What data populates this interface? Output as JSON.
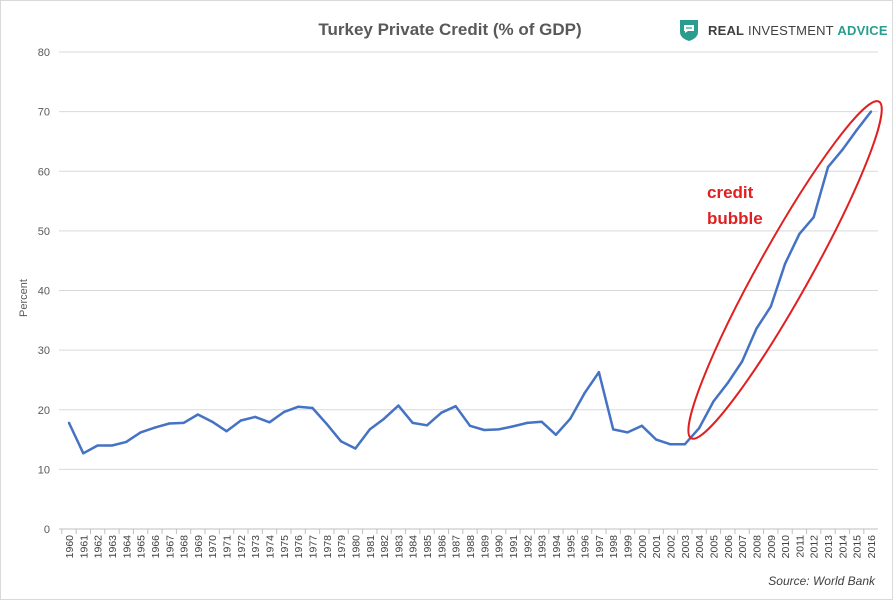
{
  "colors": {
    "line": "#4472c4",
    "grid": "#d9d9d9",
    "annotation": "#e02020",
    "logo_shield": "#2a9d8f"
  },
  "logo": {
    "icon": "shield-speech-icon",
    "word_real": "REAL",
    "word_investment": "INVESTMENT",
    "word_advice": "ADVICE"
  },
  "source": "Source: World Bank",
  "annotation": {
    "line1": "credit",
    "line2": "bubble"
  },
  "chart_data": {
    "type": "line",
    "title": "Turkey Private Credit (% of GDP)",
    "xlabel": "",
    "ylabel": "Percent",
    "ylim": [
      0,
      80
    ],
    "yticks": [
      0,
      10,
      20,
      30,
      40,
      50,
      60,
      70,
      80
    ],
    "grid": true,
    "legend": "none",
    "categories": [
      "1960",
      "1961",
      "1962",
      "1963",
      "1964",
      "1965",
      "1966",
      "1967",
      "1968",
      "1969",
      "1970",
      "1971",
      "1972",
      "1973",
      "1974",
      "1975",
      "1976",
      "1977",
      "1978",
      "1979",
      "1980",
      "1981",
      "1982",
      "1983",
      "1984",
      "1985",
      "1986",
      "1987",
      "1988",
      "1989",
      "1990",
      "1991",
      "1992",
      "1993",
      "1994",
      "1995",
      "1996",
      "1997",
      "1998",
      "1999",
      "2000",
      "2001",
      "2002",
      "2003",
      "2004",
      "2005",
      "2006",
      "2007",
      "2008",
      "2009",
      "2010",
      "2011",
      "2012",
      "2013",
      "2014",
      "2015",
      "2016"
    ],
    "series": [
      {
        "values": [
          17.8,
          12.7,
          14.0,
          14.0,
          14.6,
          16.2,
          17.0,
          17.7,
          17.8,
          19.2,
          18.0,
          16.4,
          18.2,
          18.8,
          17.9,
          19.6,
          20.5,
          20.3,
          17.6,
          14.7,
          13.5,
          16.7,
          18.5,
          20.7,
          17.8,
          17.4,
          19.5,
          20.6,
          17.3,
          16.6,
          16.7,
          17.2,
          17.8,
          18.0,
          15.8,
          18.5,
          22.8,
          26.3,
          16.7,
          16.2,
          17.3,
          15.0,
          14.2,
          14.2,
          16.9,
          21.4,
          24.5,
          28.1,
          33.6,
          37.3,
          44.5,
          49.5,
          52.3,
          60.7,
          63.6,
          66.9,
          70.0
        ]
      }
    ],
    "highlight_ellipse": {
      "x_from": "2004",
      "x_to": "2016",
      "label": "credit bubble"
    }
  }
}
